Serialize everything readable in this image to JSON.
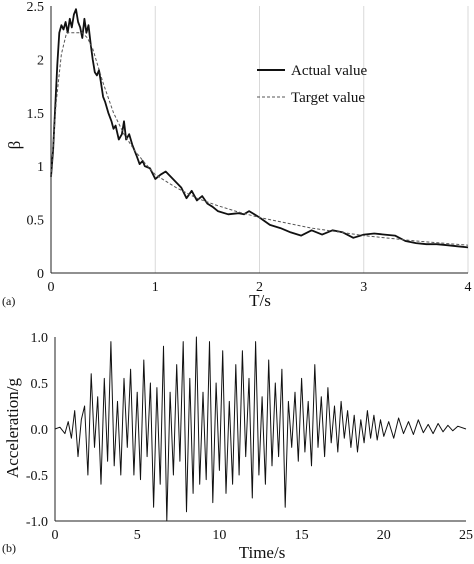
{
  "chart_data": [
    {
      "type": "line",
      "panel_label": "(a)",
      "xlabel": "T/s",
      "ylabel": "β",
      "xlim": [
        0,
        4
      ],
      "ylim": [
        0,
        2.5
      ],
      "xticks": [
        "0",
        "1",
        "2",
        "3",
        "4"
      ],
      "yticks": [
        "0",
        "0.5",
        "1",
        "1.5",
        "2",
        "2.5"
      ],
      "grid": "vertical",
      "legend": "right",
      "series": [
        {
          "name": "Actual value",
          "style": "solid",
          "color": "#111111",
          "x": [
            0.0,
            0.02,
            0.04,
            0.06,
            0.08,
            0.1,
            0.12,
            0.14,
            0.16,
            0.18,
            0.2,
            0.22,
            0.24,
            0.26,
            0.28,
            0.3,
            0.32,
            0.34,
            0.36,
            0.38,
            0.4,
            0.42,
            0.44,
            0.46,
            0.48,
            0.5,
            0.52,
            0.55,
            0.58,
            0.6,
            0.62,
            0.65,
            0.68,
            0.7,
            0.72,
            0.75,
            0.78,
            0.8,
            0.82,
            0.85,
            0.88,
            0.9,
            0.95,
            1.0,
            1.05,
            1.1,
            1.15,
            1.2,
            1.25,
            1.3,
            1.35,
            1.4,
            1.45,
            1.5,
            1.55,
            1.6,
            1.7,
            1.8,
            1.85,
            1.9,
            2.0,
            2.1,
            2.2,
            2.3,
            2.4,
            2.5,
            2.6,
            2.7,
            2.8,
            2.9,
            3.0,
            3.1,
            3.2,
            3.3,
            3.4,
            3.5,
            3.6,
            3.7,
            3.8,
            3.9,
            4.0
          ],
          "values": [
            0.9,
            1.15,
            1.55,
            1.95,
            2.25,
            2.32,
            2.28,
            2.35,
            2.25,
            2.38,
            2.3,
            2.42,
            2.47,
            2.35,
            2.3,
            2.2,
            2.38,
            2.25,
            2.32,
            2.15,
            2.0,
            1.88,
            1.85,
            1.9,
            1.78,
            1.65,
            1.6,
            1.5,
            1.42,
            1.35,
            1.38,
            1.25,
            1.3,
            1.42,
            1.25,
            1.3,
            1.2,
            1.15,
            1.1,
            1.02,
            1.05,
            1.0,
            0.98,
            0.88,
            0.92,
            0.95,
            0.9,
            0.85,
            0.8,
            0.7,
            0.77,
            0.68,
            0.72,
            0.65,
            0.62,
            0.58,
            0.55,
            0.56,
            0.55,
            0.58,
            0.52,
            0.45,
            0.42,
            0.38,
            0.35,
            0.4,
            0.36,
            0.4,
            0.38,
            0.33,
            0.36,
            0.37,
            0.36,
            0.35,
            0.3,
            0.28,
            0.27,
            0.27,
            0.26,
            0.25,
            0.24
          ]
        },
        {
          "name": "Target value",
          "style": "dashed",
          "color": "#555555",
          "x": [
            0.0,
            0.05,
            0.1,
            0.15,
            0.2,
            0.25,
            0.3,
            0.35,
            0.4,
            0.5,
            0.6,
            0.7,
            0.8,
            0.9,
            1.0,
            1.2,
            1.4,
            1.6,
            1.8,
            2.0,
            2.5,
            3.0,
            3.5,
            4.0
          ],
          "values": [
            0.9,
            1.6,
            2.05,
            2.25,
            2.25,
            2.25,
            2.25,
            2.2,
            2.1,
            1.78,
            1.5,
            1.3,
            1.15,
            1.03,
            0.92,
            0.8,
            0.7,
            0.63,
            0.57,
            0.52,
            0.42,
            0.35,
            0.3,
            0.26
          ]
        }
      ]
    },
    {
      "type": "line",
      "panel_label": "(b)",
      "xlabel": "Time/s",
      "ylabel": "Acceleration/g",
      "xlim": [
        0,
        25
      ],
      "ylim": [
        -1.0,
        1.0
      ],
      "xticks": [
        "0",
        "5",
        "10",
        "15",
        "20",
        "25"
      ],
      "yticks": [
        "-1.0",
        "-0.5",
        "0.0",
        "0.5",
        "1.0"
      ],
      "grid": "none",
      "series": [
        {
          "style": "solid",
          "color": "#111111",
          "x": [
            0.0,
            0.3,
            0.6,
            0.8,
            1.0,
            1.2,
            1.4,
            1.6,
            1.8,
            2.0,
            2.2,
            2.4,
            2.6,
            2.8,
            3.0,
            3.2,
            3.4,
            3.6,
            3.8,
            4.0,
            4.2,
            4.4,
            4.6,
            4.8,
            5.0,
            5.2,
            5.4,
            5.6,
            5.8,
            6.0,
            6.2,
            6.4,
            6.6,
            6.8,
            7.0,
            7.2,
            7.4,
            7.6,
            7.8,
            8.0,
            8.2,
            8.4,
            8.6,
            8.8,
            9.0,
            9.2,
            9.4,
            9.6,
            9.8,
            10.0,
            10.2,
            10.4,
            10.6,
            10.8,
            11.0,
            11.2,
            11.4,
            11.6,
            11.8,
            12.0,
            12.2,
            12.4,
            12.6,
            12.8,
            13.0,
            13.2,
            13.4,
            13.6,
            13.8,
            14.0,
            14.2,
            14.4,
            14.6,
            14.8,
            15.0,
            15.2,
            15.4,
            15.6,
            15.8,
            16.0,
            16.2,
            16.4,
            16.6,
            16.8,
            17.0,
            17.2,
            17.4,
            17.6,
            17.8,
            18.0,
            18.2,
            18.4,
            18.6,
            18.8,
            19.0,
            19.2,
            19.4,
            19.6,
            19.8,
            20.0,
            20.3,
            20.6,
            20.9,
            21.2,
            21.5,
            21.8,
            22.1,
            22.4,
            22.7,
            23.0,
            23.3,
            23.6,
            23.9,
            24.2,
            24.5,
            25.0
          ],
          "values": [
            0.0,
            0.02,
            -0.05,
            0.08,
            -0.1,
            0.2,
            -0.3,
            0.1,
            0.25,
            -0.5,
            0.6,
            -0.2,
            0.35,
            -0.6,
            0.55,
            -0.35,
            0.95,
            -0.4,
            0.3,
            -0.5,
            0.55,
            -0.2,
            0.65,
            -0.5,
            0.4,
            -0.55,
            0.75,
            -0.3,
            0.5,
            -0.85,
            0.45,
            -0.6,
            0.9,
            -1.0,
            0.4,
            -0.5,
            0.7,
            -0.35,
            0.95,
            -0.9,
            0.55,
            -0.7,
            1.0,
            -0.6,
            0.4,
            -0.55,
            0.95,
            -0.8,
            0.5,
            -0.45,
            0.85,
            -0.7,
            0.3,
            -0.6,
            0.7,
            -0.5,
            0.85,
            -0.3,
            0.55,
            -0.75,
            0.95,
            -0.5,
            0.35,
            -0.6,
            0.75,
            -0.4,
            0.5,
            -0.3,
            0.65,
            -0.85,
            0.3,
            -0.2,
            0.4,
            -0.35,
            0.55,
            -0.25,
            0.3,
            -0.4,
            0.7,
            -0.2,
            0.35,
            -0.3,
            0.45,
            -0.15,
            0.25,
            -0.25,
            0.3,
            -0.1,
            0.2,
            -0.2,
            0.15,
            -0.25,
            0.1,
            -0.15,
            0.2,
            -0.1,
            0.15,
            -0.12,
            0.1,
            -0.08,
            0.08,
            -0.1,
            0.12,
            -0.05,
            0.08,
            -0.06,
            0.1,
            -0.04,
            0.05,
            -0.05,
            0.06,
            -0.03,
            0.04,
            -0.02,
            0.03,
            0.0
          ]
        }
      ]
    }
  ]
}
